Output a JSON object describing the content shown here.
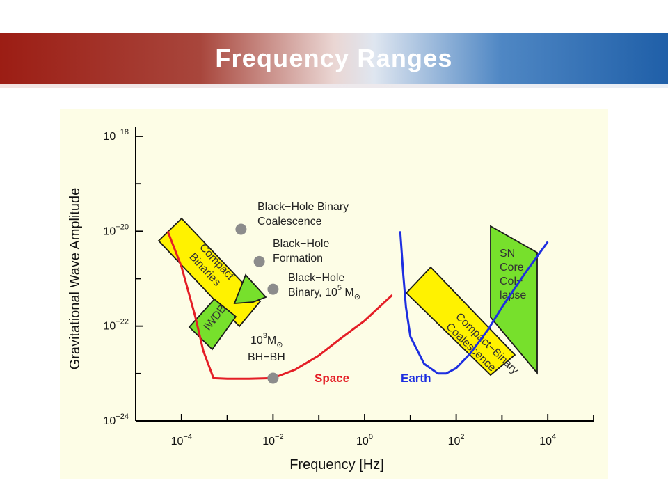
{
  "slide": {
    "title": "Frequency Ranges"
  },
  "chart_data": {
    "type": "line",
    "xlabel": "Frequency  [Hz]",
    "ylabel": "Gravitational Wave Amplitude",
    "x_scale": "log",
    "y_scale": "log",
    "xlim": [
      1e-05,
      100000
    ],
    "ylim": [
      1e-24,
      1e-18
    ],
    "x_ticks": [
      {
        "value": 0.0001,
        "base": "10",
        "exp": "−4"
      },
      {
        "value": 0.01,
        "base": "10",
        "exp": "−2"
      },
      {
        "value": 1,
        "base": "10",
        "exp": "0"
      },
      {
        "value": 100,
        "base": "10",
        "exp": "2"
      },
      {
        "value": 10000,
        "base": "10",
        "exp": "4"
      }
    ],
    "y_ticks": [
      {
        "value": 1e-18,
        "base": "10",
        "exp": "−18"
      },
      {
        "value": 1e-20,
        "base": "10",
        "exp": "−20"
      },
      {
        "value": 1e-22,
        "base": "10",
        "exp": "−22"
      },
      {
        "value": 1e-24,
        "base": "10",
        "exp": "−24"
      }
    ],
    "series": [
      {
        "name": "Space",
        "color": "#e41e26",
        "points": [
          [
            5e-05,
            1e-20
          ],
          [
            0.0001,
            1.8e-21
          ],
          [
            0.0002,
            1.6e-22
          ],
          [
            0.0003,
            3e-23
          ],
          [
            0.0005,
            8e-24
          ],
          [
            0.001,
            7.8e-24
          ],
          [
            0.003,
            7.8e-24
          ],
          [
            0.01,
            8e-24
          ],
          [
            0.03,
            1.2e-23
          ],
          [
            0.1,
            2.4e-23
          ],
          [
            0.3,
            5.5e-23
          ],
          [
            1,
            1.3e-22
          ],
          [
            3,
            3.5e-22
          ],
          [
            4,
            4.5e-22
          ]
        ]
      },
      {
        "name": "Earth",
        "color": "#1d2ee0",
        "points": [
          [
            6,
            1e-20
          ],
          [
            7,
            1.2e-21
          ],
          [
            8,
            2.5e-22
          ],
          [
            10,
            6e-23
          ],
          [
            20,
            1.6e-23
          ],
          [
            40,
            1e-23
          ],
          [
            60,
            1e-23
          ],
          [
            100,
            1.3e-23
          ],
          [
            200,
            2.6e-23
          ],
          [
            500,
            8.5e-23
          ],
          [
            1000,
            2.5e-22
          ],
          [
            3000,
            1.2e-21
          ],
          [
            10000,
            6e-21
          ]
        ]
      }
    ],
    "sources": [
      {
        "lines": [
          "Black−Hole Binary",
          "Coalescence"
        ],
        "x": 0.002,
        "y": 1.1e-20
      },
      {
        "lines": [
          "Black−Hole",
          "Formation"
        ],
        "x": 0.005,
        "y": 2.3e-21
      },
      {
        "lines": [
          "Black−Hole",
          "Binary, 10"
        ],
        "sup": "5",
        "tail": "M",
        "sun": "⊙",
        "x": 0.01,
        "y": 6e-22
      },
      {
        "lines": [
          "10",
          "BH−BH"
        ],
        "sup": "3",
        "tail": "M",
        "sun": "⊙",
        "x": 0.01,
        "y": 8e-24
      }
    ],
    "regions": [
      {
        "name": "Compact Binaries",
        "lines": [
          "Compact",
          "Binaries"
        ],
        "color": "#fff200"
      },
      {
        "name": "IWDB",
        "lines": [
          "IWDB"
        ],
        "color": "#77e02c"
      },
      {
        "name": "Compact−Binary Coalescence",
        "lines": [
          "Compact−Binary",
          "Coalescence"
        ],
        "color": "#fff200"
      },
      {
        "name": "SN Core Collapse",
        "lines": [
          "SN",
          "Core",
          "Col−",
          "lapse"
        ],
        "color": "#77e02c"
      }
    ]
  }
}
